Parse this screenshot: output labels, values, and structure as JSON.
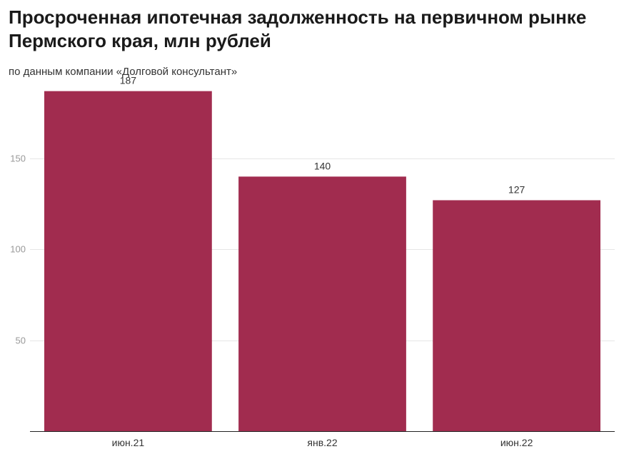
{
  "chart_data": {
    "type": "bar",
    "title": "Просроченная ипотечная задолженность на первичном рынке Пермского края, млн рублей",
    "subtitle": "по данным компании «Долговой консультант»",
    "categories": [
      "июн.21",
      "янв.22",
      "июн.22"
    ],
    "values": [
      187,
      140,
      127
    ],
    "data_labels": [
      "187",
      "140",
      "127"
    ],
    "y_ticks": [
      50,
      100,
      150
    ],
    "ylim": [
      0,
      190
    ],
    "grid": true,
    "legend": "none",
    "bar_color": "#a12c4f"
  }
}
